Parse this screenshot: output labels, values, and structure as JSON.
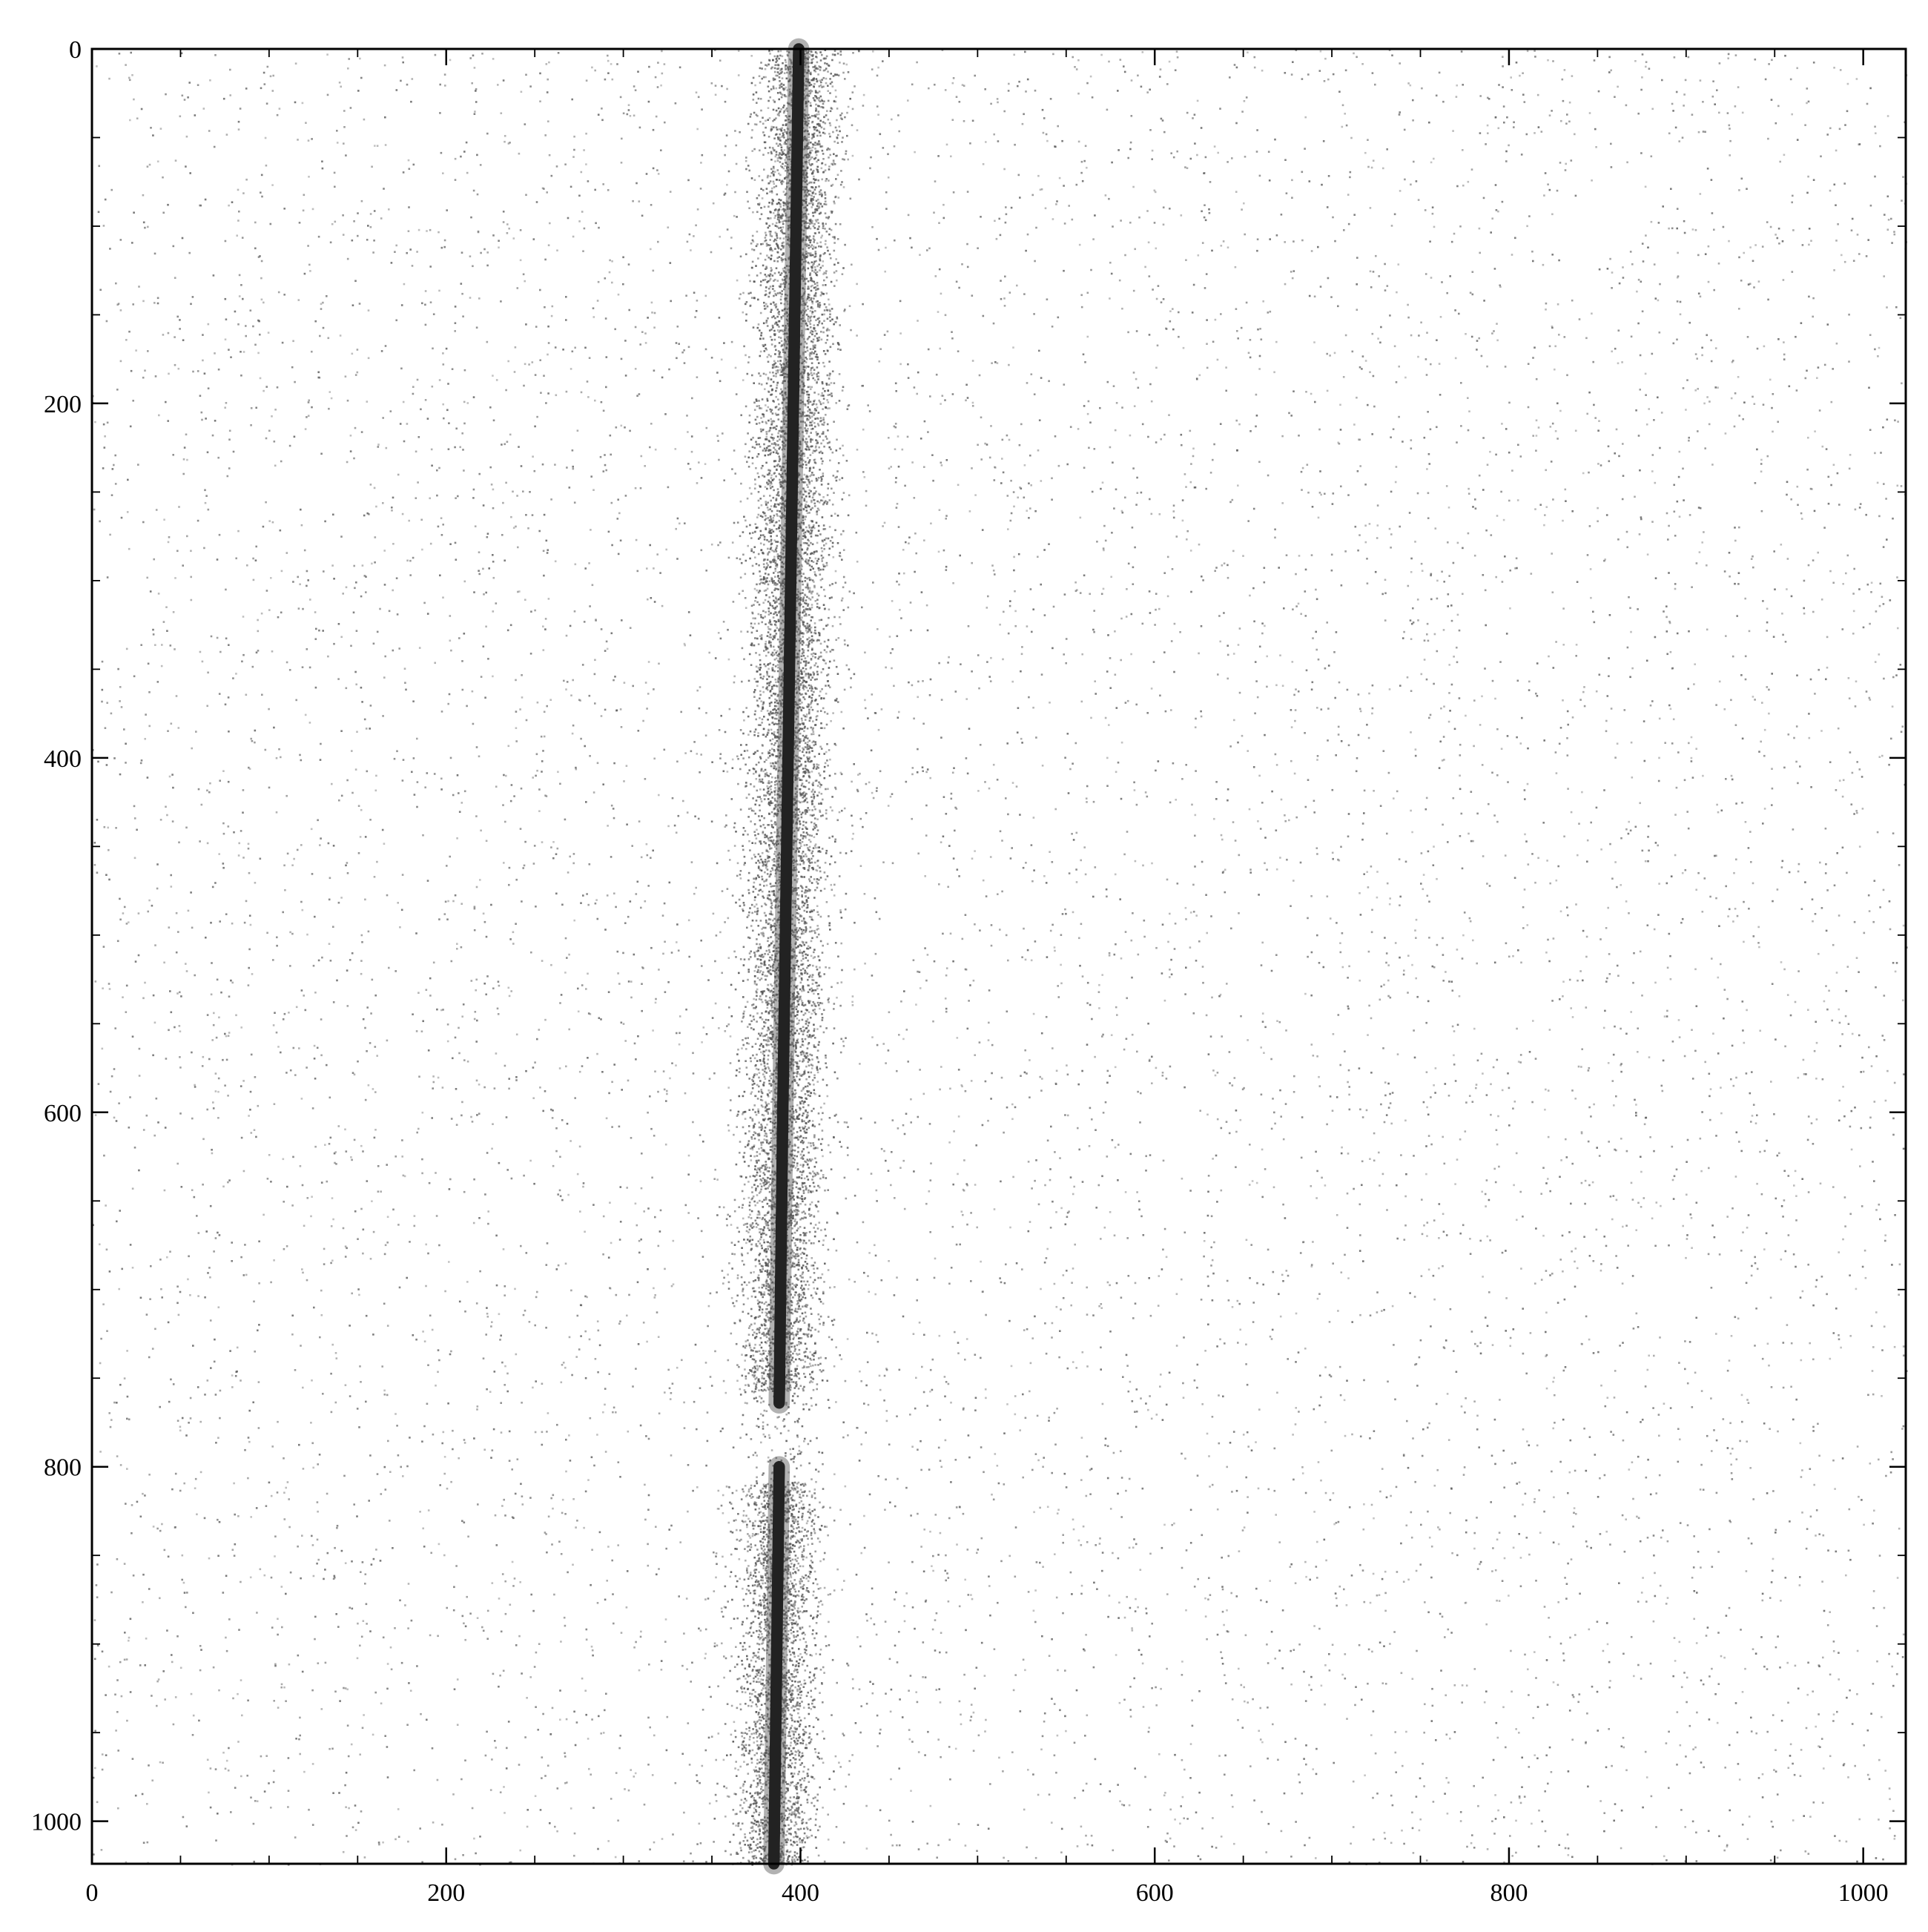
{
  "chart_data": {
    "type": "heatmap",
    "title": "",
    "xlabel": "",
    "ylabel": "",
    "xlim": [
      0,
      1024
    ],
    "ylim": [
      1024,
      0
    ],
    "y_axis_inverted": true,
    "colormap": "gray_r",
    "background_color": "#ffffff",
    "trace_color": "#222222",
    "noise_color": "#555555",
    "grid": false,
    "ticks_direction": "in",
    "x_ticks": [
      "0",
      "200",
      "400",
      "600",
      "800",
      "1000"
    ],
    "y_ticks": [
      "0",
      "200",
      "400",
      "600",
      "800",
      "1000"
    ],
    "x_tick_values": [
      0,
      200,
      400,
      600,
      800,
      1000
    ],
    "y_tick_values": [
      0,
      200,
      400,
      600,
      800,
      1000
    ],
    "trace": {
      "description": "bright near-vertical spectral trace",
      "points": [
        {
          "row": 0,
          "col": 399
        },
        {
          "row": 200,
          "col": 396
        },
        {
          "row": 400,
          "col": 393
        },
        {
          "row": 600,
          "col": 390
        },
        {
          "row": 765,
          "col": 388
        },
        {
          "row": 800,
          "col": 388
        },
        {
          "row": 1024,
          "col": 385
        }
      ],
      "gap_rows": [
        765,
        800
      ]
    },
    "background_noise": "sparse random faint pixels across full frame, denser near trace"
  }
}
